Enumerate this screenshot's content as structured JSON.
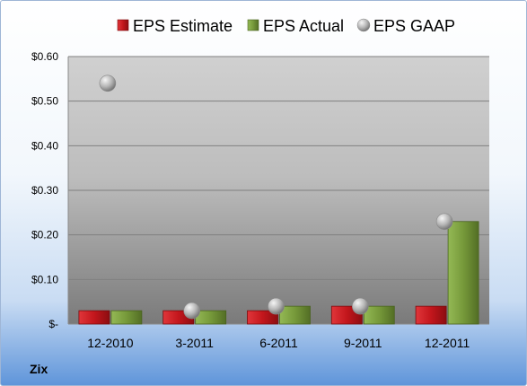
{
  "chart_data": {
    "type": "bar",
    "categories": [
      "12-2010",
      "3-2011",
      "6-2011",
      "9-2011",
      "12-2011"
    ],
    "series": [
      {
        "name": "EPS Estimate",
        "type": "bar",
        "color": "#c3161c",
        "values": [
          0.03,
          0.03,
          0.03,
          0.04,
          0.04
        ]
      },
      {
        "name": "EPS Actual",
        "type": "bar",
        "color": "#76993a",
        "values": [
          0.03,
          0.03,
          0.04,
          0.04,
          0.23
        ]
      },
      {
        "name": "EPS GAAP",
        "type": "marker",
        "color": "#a9a9a9",
        "values": [
          0.54,
          0.03,
          0.04,
          0.04,
          0.23
        ]
      }
    ],
    "ylim": [
      0,
      0.6
    ],
    "yticks": [
      0,
      0.1,
      0.2,
      0.3,
      0.4,
      0.5,
      0.6
    ],
    "ytick_labels": [
      "$-",
      "$0.10",
      "$0.20",
      "$0.30",
      "$0.40",
      "$0.50",
      "$0.60"
    ],
    "legend": "top",
    "grid": true,
    "company": "Zix"
  }
}
